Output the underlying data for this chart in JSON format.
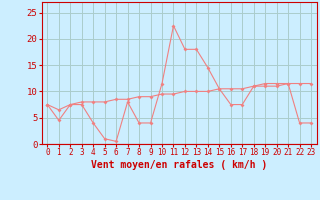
{
  "x": [
    0,
    1,
    2,
    3,
    4,
    5,
    6,
    7,
    8,
    9,
    10,
    11,
    12,
    13,
    14,
    15,
    16,
    17,
    18,
    19,
    20,
    21,
    22,
    23
  ],
  "y_line1": [
    7.5,
    4.5,
    7.5,
    7.5,
    4.0,
    1.0,
    0.5,
    8.0,
    4.0,
    4.0,
    11.5,
    22.5,
    18.0,
    18.0,
    14.5,
    10.5,
    7.5,
    7.5,
    11.0,
    11.5,
    11.5,
    11.5,
    4.0,
    4.0
  ],
  "y_line2": [
    7.5,
    6.5,
    7.5,
    8.0,
    8.0,
    8.0,
    8.5,
    8.5,
    9.0,
    9.0,
    9.5,
    9.5,
    10.0,
    10.0,
    10.0,
    10.5,
    10.5,
    10.5,
    11.0,
    11.0,
    11.0,
    11.5,
    11.5,
    11.5
  ],
  "line_color": "#f08080",
  "bg_color": "#cceeff",
  "grid_color": "#aacccc",
  "axis_color": "#cc0000",
  "tick_color": "#cc0000",
  "xlabel": "Vent moyen/en rafales ( km/h )",
  "ylim": [
    0,
    27
  ],
  "xlim": [
    -0.5,
    23.5
  ],
  "yticks": [
    0,
    5,
    10,
    15,
    20,
    25
  ],
  "xticks": [
    0,
    1,
    2,
    3,
    4,
    5,
    6,
    7,
    8,
    9,
    10,
    11,
    12,
    13,
    14,
    15,
    16,
    17,
    18,
    19,
    20,
    21,
    22,
    23
  ]
}
